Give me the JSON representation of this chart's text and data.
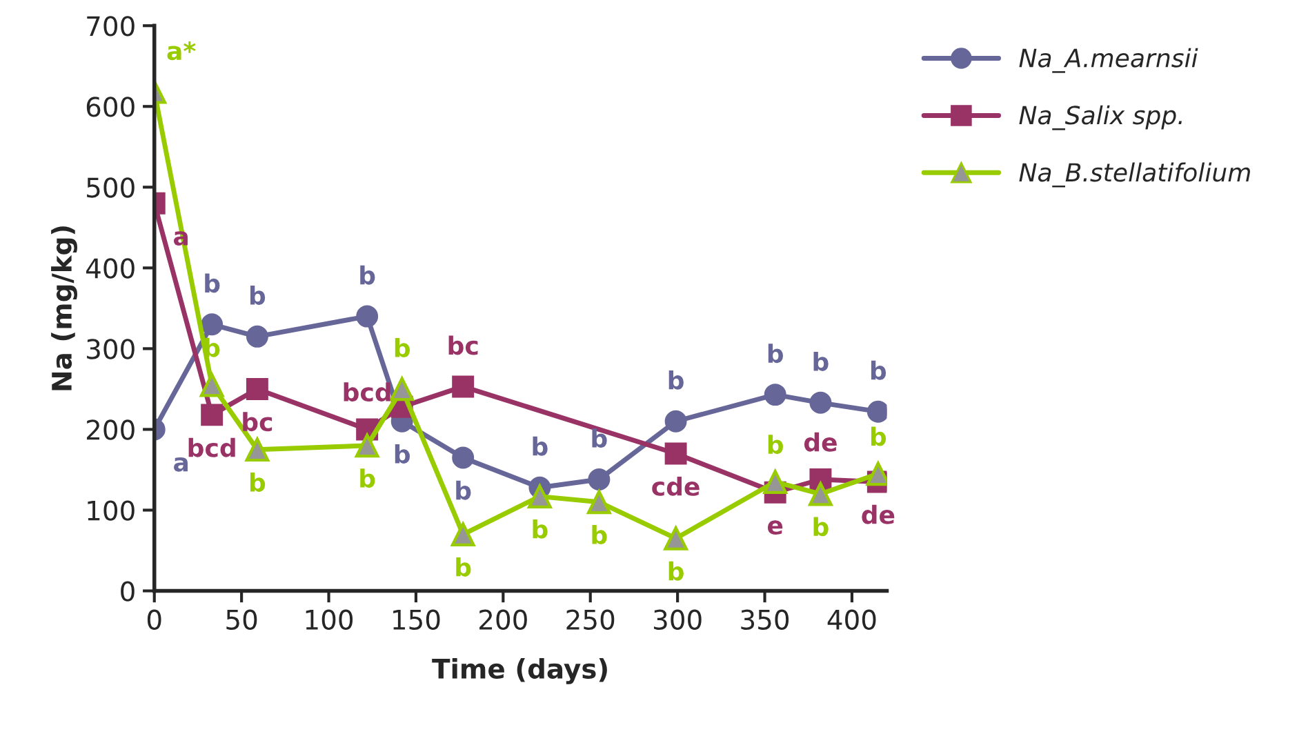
{
  "chart_data": {
    "type": "line",
    "xlabel": "Time (days)",
    "ylabel": "Na (mg/kg)",
    "x": [
      0,
      33,
      59,
      122,
      142,
      177,
      221,
      255,
      299,
      356,
      382,
      415
    ],
    "xlim": [
      0,
      420
    ],
    "xticks": [
      0,
      50,
      100,
      150,
      200,
      250,
      300,
      350,
      400
    ],
    "ylim": [
      0,
      700
    ],
    "yticks": [
      0,
      100,
      200,
      300,
      400,
      500,
      600,
      700
    ],
    "grid": false,
    "legend": "right",
    "series": [
      {
        "name": "Na_A.mearnsii",
        "color": "#666699",
        "marker": "circle",
        "values": [
          200,
          330,
          315,
          340,
          210,
          165,
          128,
          138,
          210,
          243,
          233,
          222
        ],
        "value_labels": [
          "a",
          "b",
          "b",
          "b",
          "b",
          "b",
          "b",
          "b",
          "b",
          "b",
          "b",
          "b"
        ]
      },
      {
        "name": "Na_Salix spp.",
        "color": "#993366",
        "marker": "square",
        "values": [
          480,
          218,
          250,
          200,
          228,
          253,
          null,
          null,
          170,
          122,
          138,
          135
        ],
        "value_labels": [
          "a",
          "bcd",
          "bc",
          "bcd",
          null,
          "bc",
          null,
          null,
          "cde",
          "e",
          "de",
          "de"
        ]
      },
      {
        "name": "Na_B.stellatifolium",
        "color": "#99cc00",
        "marker": "triangle",
        "values": [
          618,
          255,
          175,
          180,
          250,
          70,
          117,
          110,
          65,
          135,
          120,
          145
        ],
        "value_labels": [
          "a*",
          "b",
          "b",
          "b",
          "b",
          "b",
          "b",
          "b",
          "b",
          "b",
          "b",
          "b"
        ]
      }
    ]
  }
}
